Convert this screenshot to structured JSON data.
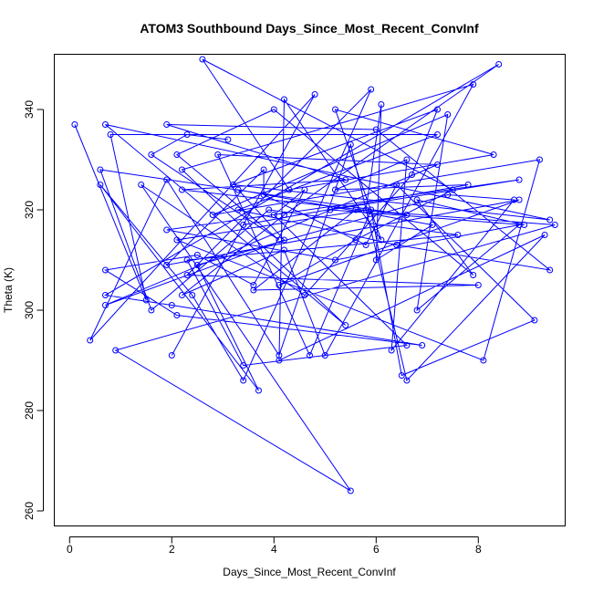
{
  "chart_data": {
    "type": "line",
    "title": "ATOM3 Southbound Days_Since_Most_Recent_ConvInf",
    "xlabel": "Days_Since_Most_Recent_ConvInf",
    "ylabel": "Theta (K)",
    "xlim": [
      -0.3,
      9.7
    ],
    "ylim": [
      257,
      351
    ],
    "xticks": [
      0,
      2,
      4,
      6,
      8
    ],
    "yticks": [
      260,
      280,
      300,
      320,
      340
    ],
    "grid": false,
    "color": "#0000ff",
    "marker": "open-circle",
    "series": [
      {
        "x": [
          0.1,
          1.5,
          0.8,
          7.2,
          3.3,
          6.4,
          9.4,
          6.0,
          1.9,
          5.4,
          2.2,
          6.6,
          0.6,
          1.6,
          3.9,
          7.6,
          2.3,
          3.4,
          6.6,
          4.0,
          4.6,
          3.6,
          2.5,
          0.7,
          2.1,
          6.9,
          2.0,
          0.7,
          8.4,
          4.2,
          2.2,
          4.2,
          5.0,
          7.9,
          2.2,
          5.4,
          0.7,
          9.4,
          3.2,
          7.2,
          6.7,
          4.6,
          1.4,
          5.5,
          0.9,
          9.5,
          5.6,
          3.6,
          8.0,
          2.3,
          5.9,
          3.4,
          2.4,
          0.6,
          3.7,
          2.5,
          7.4,
          8.7,
          6.3,
          6.6,
          5.2,
          7.8,
          3.4,
          2.0,
          4.8,
          0.4,
          1.9,
          4.1,
          5.5,
          6.6,
          9.3,
          4.1,
          4.2,
          6.1,
          5.2,
          8.3,
          4.3,
          2.6,
          7.5,
          5.6,
          4.1,
          8.8,
          1.9,
          3.8,
          3.8,
          5.8,
          6.4,
          9.1,
          6.5,
          5.9,
          4.7,
          2.9,
          7.2,
          0.7,
          4.2,
          3.3,
          7.1,
          6.0,
          6.1,
          5.8,
          2.1,
          8.1,
          9.2,
          2.8,
          7.4,
          6.8,
          8.8,
          5.2,
          1.9,
          8.8,
          5.1,
          8.9,
          6.8,
          7.9,
          4.0,
          2.1,
          4.1,
          1.6,
          2.3,
          3.1
        ],
        "y": [
          337,
          302,
          335,
          335,
          320,
          313,
          308,
          336,
          337,
          326,
          324,
          319,
          328,
          300,
          320,
          315,
          310,
          289,
          293,
          319,
          324,
          305,
          311,
          308,
          299,
          293,
          301,
          303,
          349,
          319,
          303,
          312,
          291,
          345,
          328,
          297,
          337,
          318,
          325,
          340,
          327,
          303,
          325,
          264,
          292,
          317,
          320,
          304,
          305,
          307,
          344,
          286,
          303,
          325,
          284,
          309,
          323,
          322,
          292,
          330,
          324,
          325,
          317,
          291,
          343,
          294,
          326,
          291,
          333,
          286,
          315,
          290,
          342,
          314,
          340,
          331,
          324,
          350,
          324,
          314,
          305,
          322,
          309,
          328,
          323,
          313,
          325,
          298,
          287,
          320,
          291,
          331,
          329,
          301,
          314,
          324,
          317,
          310,
          341,
          320,
          314,
          290,
          330,
          319,
          339,
          300,
          317,
          310,
          316,
          326,
          320,
          317,
          322,
          307,
          340,
          331,
          314,
          331,
          335,
          334
        ]
      }
    ]
  }
}
